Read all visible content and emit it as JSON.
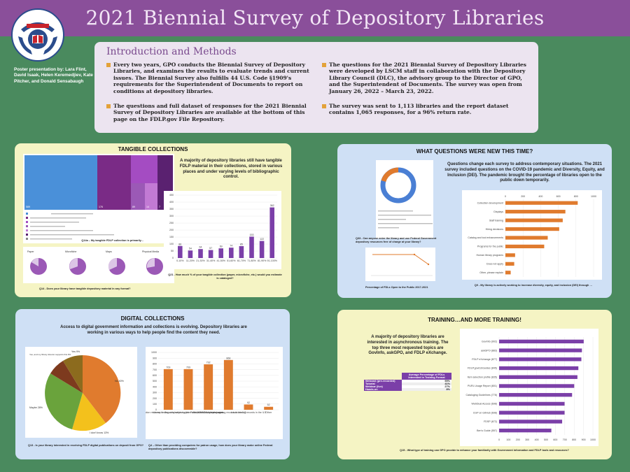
{
  "poster": {
    "title": "2021 Biennial Survey of Depository Libraries",
    "authors": "Poster presentation by: Lara Flint, David Isaak, Helen Keremedjiev, Kate Pitcher, and Donald Sensabaugh"
  },
  "intro": {
    "title": "Introduction and Methods",
    "bullets": [
      "Every two years, GPO conducts the Biennial Survey of Depository Libraries, and examines the results to evaluate trends and current issues. The Biennial Survey also fulfills 44 U.S. Code §1909's requirements for the Superintendent of Documents to report on conditions at depository libraries.",
      "The questions and full dataset of responses for the 2021 Biennial Survey of Depository Libraries are available at the bottom of this page on the FDLP.gov File Repository.",
      "The questions for the 2021 Biennial Survey of Depository Libraries were developed by LSCM staff in collaboration with the Depository Library Council (DLC), the advisory group to the Director of GPO, and the Superintendent of Documents. The survey was open from January 26, 2022 – March 23, 2022.",
      "The survey was sent to 1,113 libraries and the report dataset contains 1,065 responses, for a 96% return rate."
    ]
  },
  "tangible": {
    "title": "TANGIBLE COLLECTIONS",
    "text": "A majority of depository libraries still have tangible FDLP material in their collections, stored in various places and under varying levels of bibliographic control.",
    "treemap_caption": "Q14a – My tangible FDLP collection is primarily…",
    "treemap_values": [
      "589",
      "176",
      "89",
      "14",
      "7"
    ],
    "pie_labels": [
      "Paper",
      "Microfiche",
      "Maps",
      "Physical Media"
    ],
    "pies_caption": "Q14 - Does your library have tangible depository material in any format?",
    "bar_caption": "Q21 - How much % of your tangible collection (paper, microfiche, etc.) would you estimate is cataloged?",
    "chart_data": {
      "type": "bar",
      "categories": [
        "0-10%",
        "11-20%",
        "21-30%",
        "31-40%",
        "41-50%",
        "51-60%",
        "61-70%",
        "71-80%",
        "81-90%",
        "91-100%"
      ],
      "values": [
        86,
        54,
        64,
        57,
        69,
        74,
        85,
        153,
        122,
        362
      ],
      "ylim": [
        0,
        450
      ],
      "yticks": [
        "0",
        "50",
        "100",
        "150",
        "200",
        "250",
        "300",
        "350",
        "400",
        "450"
      ]
    }
  },
  "new_questions": {
    "title": "WHAT QUESTIONS WERE NEW THIS TIME?",
    "text": "Questions change each survey to address contemporary situations. The 2021 survey included questions on the COVID-19 pandemic and Diversity, Equity, and Inclusion (DEI). The pandemic brought the percentage of libraries open to the public down temporarily.",
    "donut_caption": "Q33 - Can anyone enter the library and use Federal Government depository resources free of charge at your library?",
    "line_caption": "Percentage of FDLs Open to the Public 2017-2021",
    "bar_caption": "Q9 - My library is actively working to increase diversity, equity, and inclusion (DEI) through …",
    "chart_data": {
      "type": "bar",
      "categories": [
        "Collection development",
        "Displays",
        "Staff training",
        "Hiring decisions",
        "Catalog and tool enhancements",
        "Programs for the public",
        "Human library programs",
        "Does not apply",
        "Other, please explain"
      ],
      "values": [
        820,
        680,
        650,
        610,
        480,
        440,
        110,
        100,
        60
      ],
      "xlim": [
        0,
        1000
      ],
      "xticks": [
        "0",
        "200",
        "400",
        "600",
        "800",
        "1000"
      ]
    }
  },
  "digital": {
    "title": "DIGITAL COLLECTIONS",
    "text": "Access to digital government information and collections is evolving. Depository libraries are working in various ways to help people find the content they need.",
    "pie_caption": "Q13 - Is your library interested in receiving FDLP digital publications on deposit from GPO?",
    "pie_labels": [
      "No 40%",
      "I don't know 13%",
      "Maybe 28%",
      "Yes, and my library director supports this 9%",
      "Yes 9%"
    ],
    "bar_caption": "Q4 – Other than providing computers for patron usage, how does your library make online Federal depository publications discoverable?",
    "chart_data": {
      "type": "bar",
      "categories": [
        "Government information resource or discovery services (ex: Primo, EBSCO, etc.)",
        "Library finding aids/subject guides with links to online resources",
        "Links on library web pages",
        "Local catalog records in the ILS",
        "Local catalog records in the ILS",
        "Other"
      ],
      "values": [
        709,
        709,
        792,
        868,
        92,
        52
      ],
      "ylim": [
        0,
        1000
      ],
      "yticks": [
        "0",
        "100",
        "200",
        "300",
        "400",
        "500",
        "600",
        "700",
        "800",
        "900",
        "1000"
      ]
    }
  },
  "training": {
    "title": "TRAINING…AND MORE TRAINING!",
    "text": "A majority of depository libraries are interested in asynchronous training. The top three most requested topics are GovInfo, askGPO, and FDLP eXchange.",
    "table": {
      "header": "Average Percentage of FDLs Interested in Training Format",
      "rows": [
        [
          "Webcast (pre-recorded)",
          "55%"
        ],
        [
          "Tutorial",
          "41%"
        ],
        [
          "Webinar (live)",
          "27%"
        ],
        [
          "Hands-on",
          "8%"
        ]
      ]
    },
    "bar_caption": "Q15 - What type of training can GPO provide to enhance your familiarity with Government information and FDLP tools and resources?",
    "chart_data": {
      "type": "bar",
      "categories": [
        "GovInfo (902)",
        "askGPO (883)",
        "FDLP eXchange (877)",
        "FDLP.gov/LibGuides (845)",
        "Item selection profile (835)",
        "PURL Usage Report (801)",
        "Cataloging Guidelines (778)",
        "WebDual Access (698)",
        "CGP on GitHub (698)",
        "FDSP (672)",
        "Ben's Guide (557)"
      ],
      "values": [
        902,
        883,
        877,
        845,
        835,
        801,
        778,
        698,
        698,
        672,
        557
      ],
      "xlim": [
        0,
        1000
      ],
      "xticks": [
        "0",
        "100",
        "200",
        "300",
        "400",
        "500",
        "600",
        "700",
        "800",
        "900",
        "1000"
      ]
    }
  }
}
